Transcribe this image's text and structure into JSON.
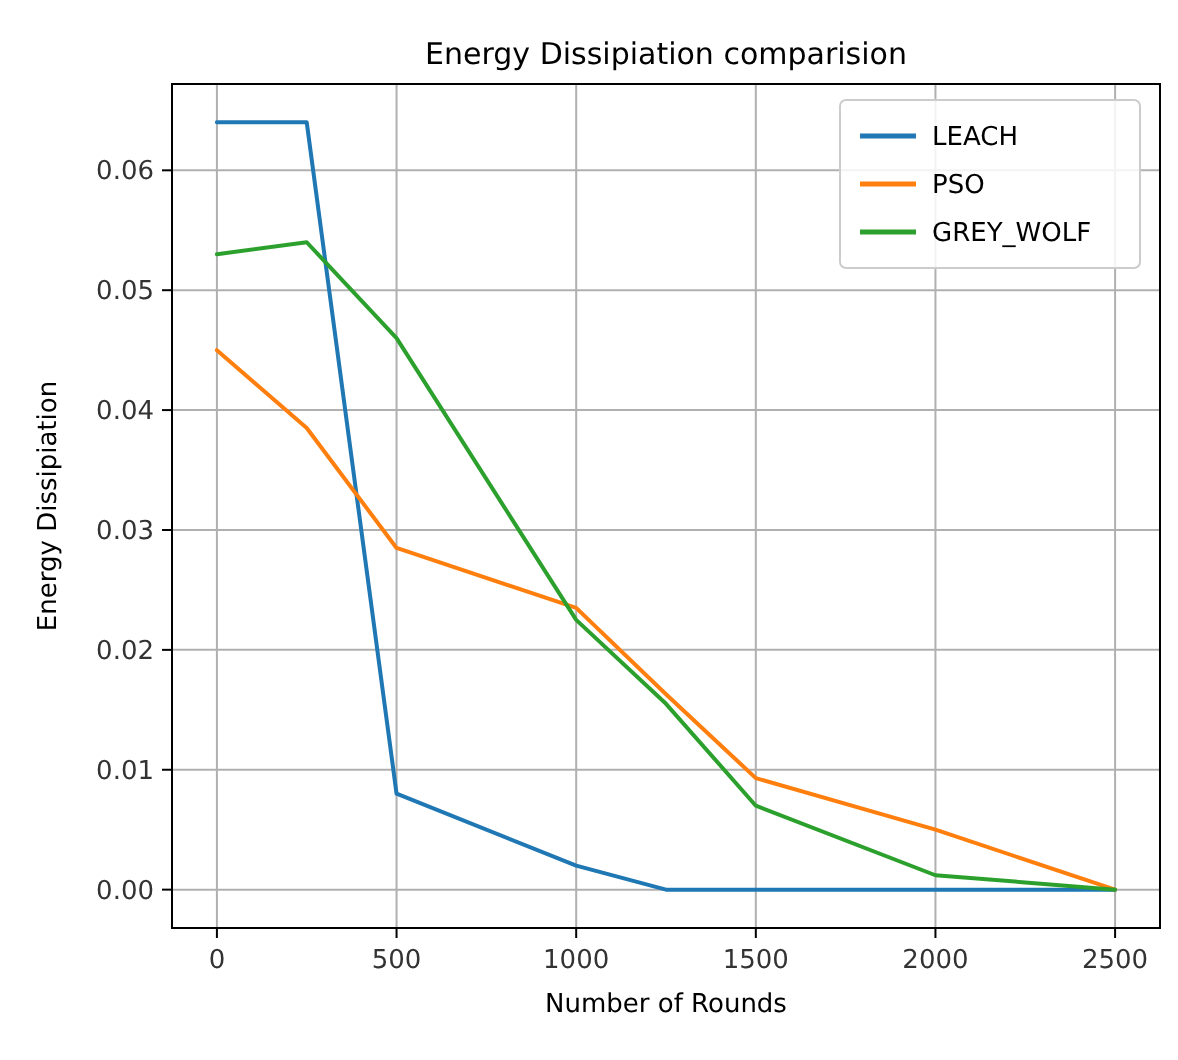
{
  "chart_data": {
    "type": "line",
    "title": "Energy Dissipiation comparision",
    "xlabel": "Number of Rounds",
    "ylabel": "Energy Dissipiation",
    "x": [
      0,
      250,
      500,
      1000,
      1250,
      1500,
      2000,
      2500
    ],
    "series": [
      {
        "name": "LEACH",
        "color": "#1f77b4",
        "values": [
          0.064,
          0.064,
          0.008,
          0.002,
          0,
          0,
          0,
          0
        ]
      },
      {
        "name": "PSO",
        "color": "#ff7f0e",
        "values": [
          0.045,
          0.0385,
          0.0285,
          0.0235,
          0.0163,
          0.0093,
          0.005,
          0
        ]
      },
      {
        "name": "GREY_WOLF",
        "color": "#2ca02c",
        "values": [
          0.053,
          0.054,
          0.046,
          0.0225,
          0.0155,
          0.007,
          0.0012,
          0
        ]
      }
    ],
    "xlim": [
      -125,
      2625
    ],
    "ylim": [
      -0.0032,
      0.0672
    ],
    "xticks": [
      0,
      500,
      1000,
      1500,
      2000,
      2500
    ],
    "yticks": [
      {
        "value": 0,
        "label": "0.00"
      },
      {
        "value": 0.01,
        "label": "0.01"
      },
      {
        "value": 0.02,
        "label": "0.02"
      },
      {
        "value": 0.03,
        "label": "0.03"
      },
      {
        "value": 0.04,
        "label": "0.04"
      },
      {
        "value": 0.05,
        "label": "0.05"
      },
      {
        "value": 0.06,
        "label": "0.06"
      }
    ],
    "grid": true,
    "legend": "top right",
    "marker": "none",
    "line_style": "solid"
  }
}
